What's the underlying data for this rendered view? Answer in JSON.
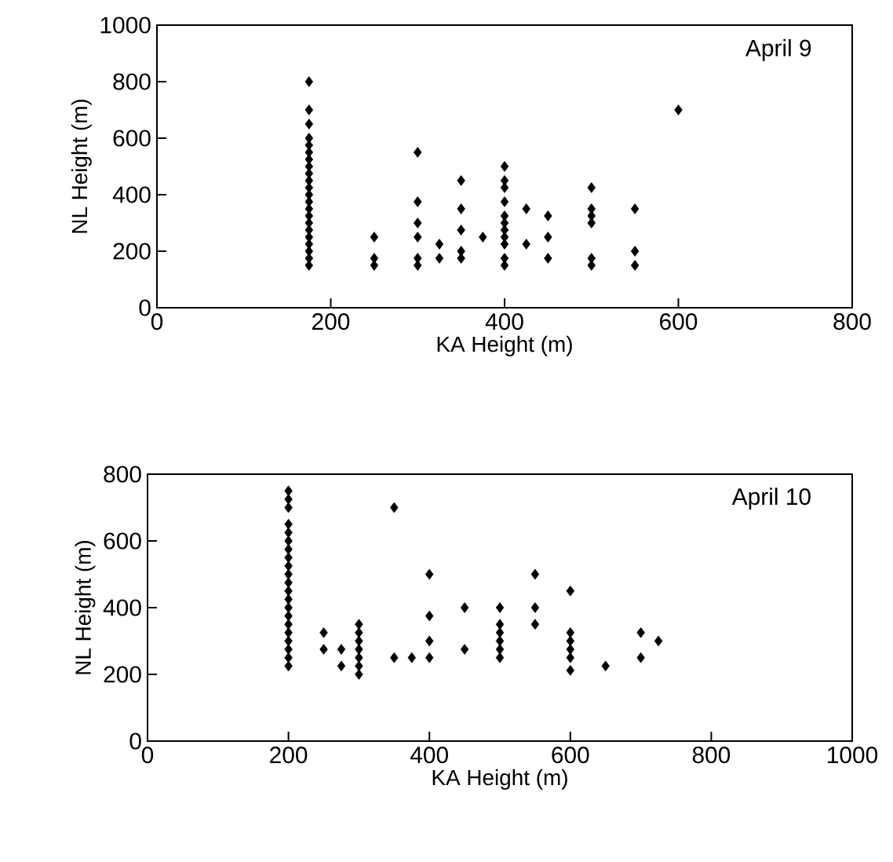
{
  "chart_data": [
    {
      "type": "scatter",
      "xlabel": "KA Height (m)",
      "ylabel": "NL Height (m)",
      "annotations": [
        "April 9"
      ],
      "marker": "diamond",
      "color": "#000000",
      "xlim": [
        0,
        800
      ],
      "ylim": [
        0,
        1000
      ],
      "xticks": [
        0,
        200,
        400,
        600,
        800
      ],
      "yticks": [
        0,
        200,
        400,
        600,
        800,
        1000
      ],
      "grid": false,
      "x": [
        175,
        175,
        175,
        175,
        175,
        175,
        175,
        175,
        175,
        175,
        175,
        175,
        175,
        175,
        175,
        175,
        175,
        175,
        175,
        175,
        175,
        175,
        250,
        250,
        250,
        300,
        300,
        300,
        300,
        300,
        300,
        325,
        325,
        350,
        350,
        350,
        350,
        350,
        375,
        400,
        400,
        400,
        400,
        400,
        400,
        400,
        400,
        400,
        400,
        400,
        425,
        425,
        450,
        450,
        450,
        500,
        500,
        500,
        500,
        500,
        500,
        550,
        550,
        550,
        600
      ],
      "values": [
        800,
        700,
        650,
        600,
        575,
        550,
        525,
        500,
        475,
        450,
        425,
        400,
        375,
        350,
        325,
        300,
        275,
        250,
        225,
        200,
        175,
        150,
        250,
        175,
        150,
        550,
        375,
        300,
        250,
        175,
        150,
        225,
        175,
        450,
        350,
        275,
        200,
        175,
        250,
        500,
        450,
        425,
        375,
        325,
        300,
        275,
        250,
        225,
        175,
        150,
        350,
        225,
        325,
        250,
        175,
        425,
        350,
        325,
        300,
        175,
        150,
        350,
        200,
        150,
        700
      ]
    },
    {
      "type": "scatter",
      "xlabel": "KA Height (m)",
      "ylabel": "NL Height (m)",
      "annotations": [
        "April 10"
      ],
      "marker": "diamond",
      "color": "#000000",
      "xlim": [
        0,
        1000
      ],
      "ylim": [
        0,
        800
      ],
      "xticks": [
        0,
        200,
        400,
        600,
        800,
        1000
      ],
      "yticks": [
        0,
        200,
        400,
        600,
        800
      ],
      "grid": false,
      "x": [
        200,
        200,
        200,
        200,
        200,
        200,
        200,
        200,
        200,
        200,
        200,
        200,
        200,
        200,
        200,
        200,
        200,
        200,
        200,
        200,
        200,
        250,
        250,
        275,
        275,
        300,
        300,
        300,
        300,
        300,
        300,
        300,
        350,
        350,
        375,
        400,
        400,
        400,
        400,
        450,
        450,
        500,
        500,
        500,
        500,
        500,
        500,
        550,
        550,
        550,
        600,
        600,
        600,
        600,
        600,
        600,
        650,
        700,
        700,
        725
      ],
      "values": [
        750,
        725,
        700,
        650,
        625,
        600,
        575,
        550,
        525,
        500,
        475,
        450,
        425,
        400,
        375,
        350,
        325,
        300,
        275,
        250,
        225,
        325,
        275,
        275,
        225,
        350,
        325,
        300,
        275,
        250,
        225,
        200,
        700,
        250,
        250,
        500,
        375,
        300,
        250,
        400,
        275,
        400,
        350,
        325,
        300,
        275,
        250,
        500,
        400,
        350,
        450,
        325,
        300,
        275,
        250,
        212,
        225,
        325,
        250,
        300
      ]
    }
  ]
}
